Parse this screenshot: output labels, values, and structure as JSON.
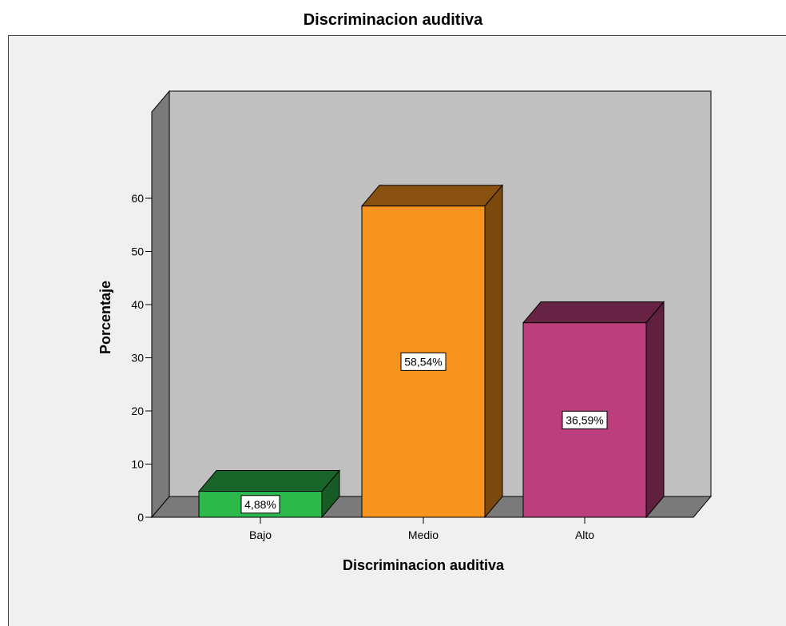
{
  "chart_data": {
    "type": "bar",
    "title": "Discriminacion auditiva",
    "xlabel": "Discriminacion auditiva",
    "ylabel": "Porcentaje",
    "categories": [
      "Bajo",
      "Medio",
      "Alto"
    ],
    "values": [
      4.88,
      58.54,
      36.59
    ],
    "data_labels": [
      "4,88%",
      "58,54%",
      "36,59%"
    ],
    "ylim": [
      0,
      60
    ],
    "yticks": [
      0,
      10,
      20,
      30,
      40,
      50,
      60
    ],
    "colors": [
      "#2db84b",
      "#f7941d",
      "#bb3f7c"
    ],
    "style": "3d-bar",
    "grid": false
  }
}
